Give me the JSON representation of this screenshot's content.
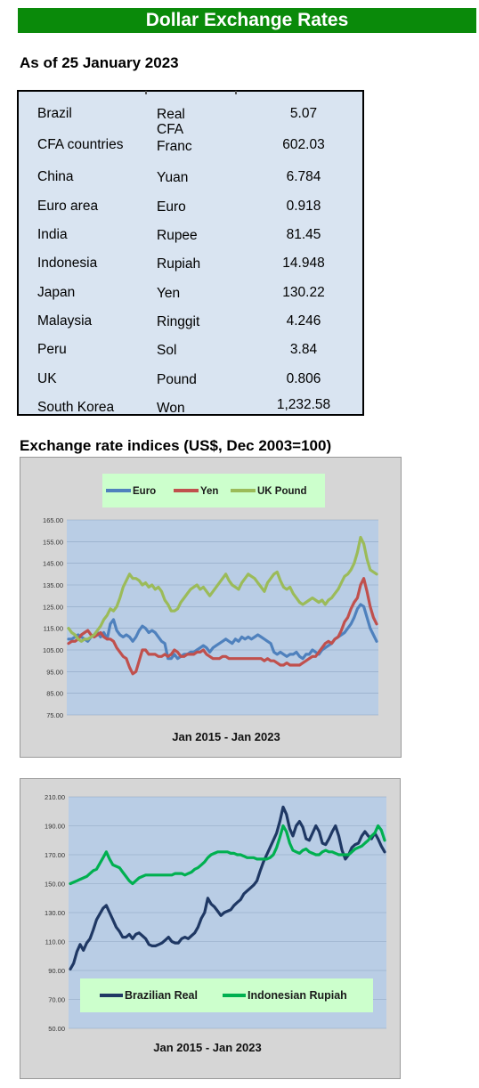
{
  "header": {
    "title": "Dollar Exchange Rates",
    "as_of": "As of 25 January 2023"
  },
  "rates": [
    {
      "country": "Brazil",
      "currency": "Real",
      "value": "5.07"
    },
    {
      "country": "CFA countries",
      "currency": "CFA Franc",
      "value": "602.03"
    },
    {
      "country": "China",
      "currency": "Yuan",
      "value": "6.784"
    },
    {
      "country": "Euro area",
      "currency": "Euro",
      "value": "0.918"
    },
    {
      "country": "India",
      "currency": "Rupee",
      "value": "81.45"
    },
    {
      "country": "Indonesia",
      "currency": "Rupiah",
      "value": "14.948"
    },
    {
      "country": "Japan",
      "currency": "Yen",
      "value": "130.22"
    },
    {
      "country": "Malaysia",
      "currency": "Ringgit",
      "value": "4.246"
    },
    {
      "country": "Peru",
      "currency": "Sol",
      "value": "3.84"
    },
    {
      "country": "UK",
      "currency": "Pound",
      "value": "0.806"
    },
    {
      "country": "South Korea",
      "currency": "Won",
      "value": "1,232.58"
    }
  ],
  "indices_title": "Exchange rate indices (US$, Dec 2003=100)",
  "colors": {
    "title_bar": "#0a8a0a",
    "table_bg": "#d9e4f1",
    "plot_bg": "#b9cde5",
    "frame_bg": "#d6d6d6",
    "legend_bg": "#ccffcc"
  },
  "chart_data": [
    {
      "type": "line",
      "xlabel": "Jan 2015 -  Jan 2023",
      "ylim": [
        75,
        165
      ],
      "yticks": [
        "75.00",
        "85.00",
        "95.00",
        "105.00",
        "115.00",
        "125.00",
        "135.00",
        "145.00",
        "155.00",
        "165.00"
      ],
      "x_count": 97,
      "legend_position": "top",
      "series": [
        {
          "name": "Euro",
          "color": "#4f81bd",
          "values": [
            110,
            110,
            111,
            112,
            111,
            110,
            109,
            111,
            112,
            113,
            111,
            113,
            110,
            117,
            119,
            114,
            112,
            111,
            112,
            111,
            109,
            111,
            114,
            116,
            115,
            113,
            114,
            113,
            111,
            109,
            108,
            101,
            101,
            103,
            101,
            102,
            103,
            103,
            104,
            104,
            105,
            106,
            107,
            106,
            104,
            106,
            107,
            108,
            109,
            110,
            109,
            108,
            110,
            109,
            111,
            110,
            111,
            110,
            111,
            112,
            111,
            110,
            109,
            108,
            104,
            103,
            104,
            103,
            102,
            103,
            103,
            104,
            102,
            101,
            103,
            103,
            105,
            104,
            103,
            105,
            106,
            107,
            108,
            110,
            111,
            112,
            113,
            115,
            117,
            120,
            124,
            126,
            125,
            120,
            115,
            112,
            109
          ]
        },
        {
          "name": "Yen",
          "color": "#c0504d",
          "values": [
            108,
            109,
            109,
            110,
            112,
            113,
            114,
            112,
            111,
            112,
            113,
            111,
            110,
            110,
            109,
            106,
            104,
            102,
            101,
            97,
            94,
            95,
            100,
            105,
            105,
            103,
            103,
            103,
            102,
            102,
            103,
            102,
            103,
            105,
            104,
            102,
            102,
            103,
            103,
            103,
            104,
            104,
            105,
            103,
            102,
            101,
            101,
            101,
            102,
            102,
            101,
            101,
            101,
            101,
            101,
            101,
            101,
            101,
            101,
            101,
            101,
            100,
            101,
            100,
            100,
            99,
            98,
            98,
            99,
            98,
            98,
            98,
            98,
            99,
            100,
            101,
            102,
            102,
            104,
            106,
            108,
            109,
            108,
            110,
            111,
            114,
            118,
            120,
            124,
            127,
            129,
            135,
            138,
            132,
            125,
            120,
            117
          ]
        },
        {
          "name": "UK Pound",
          "color": "#9bbb59",
          "values": [
            115,
            113,
            112,
            110,
            109,
            110,
            110,
            111,
            112,
            114,
            116,
            119,
            121,
            124,
            123,
            125,
            129,
            134,
            137,
            140,
            138,
            138,
            137,
            135,
            136,
            134,
            135,
            133,
            134,
            132,
            128,
            126,
            123,
            123,
            124,
            127,
            129,
            131,
            133,
            134,
            135,
            133,
            134,
            132,
            130,
            132,
            134,
            136,
            138,
            140,
            137,
            135,
            134,
            133,
            136,
            138,
            140,
            139,
            138,
            136,
            134,
            132,
            136,
            138,
            140,
            141,
            137,
            134,
            133,
            134,
            131,
            129,
            127,
            126,
            127,
            128,
            129,
            128,
            127,
            128,
            126,
            128,
            129,
            131,
            133,
            136,
            139,
            140,
            142,
            145,
            150,
            157,
            154,
            147,
            142,
            141,
            140
          ]
        }
      ]
    },
    {
      "type": "line",
      "xlabel": "Jan 2015 - Jan 2023",
      "ylim": [
        50,
        210
      ],
      "yticks": [
        "50.00",
        "70.00",
        "90.00",
        "110.00",
        "130.00",
        "150.00",
        "170.00",
        "190.00",
        "210.00"
      ],
      "x_count": 97,
      "legend_position": "bottom",
      "series": [
        {
          "name": "Brazilian Real",
          "color": "#1f3864",
          "values": [
            91,
            95,
            103,
            108,
            104,
            109,
            112,
            118,
            125,
            129,
            133,
            135,
            130,
            125,
            120,
            117,
            113,
            113,
            115,
            112,
            115,
            116,
            114,
            112,
            108,
            107,
            107,
            108,
            109,
            111,
            113,
            110,
            109,
            109,
            112,
            113,
            112,
            114,
            116,
            120,
            126,
            130,
            140,
            136,
            134,
            131,
            128,
            130,
            131,
            132,
            135,
            137,
            139,
            143,
            145,
            147,
            149,
            152,
            159,
            165,
            170,
            175,
            180,
            185,
            193,
            203,
            198,
            188,
            183,
            190,
            193,
            189,
            181,
            180,
            185,
            190,
            186,
            178,
            177,
            181,
            186,
            190,
            183,
            173,
            167,
            170,
            175,
            177,
            178,
            183,
            186,
            183,
            181,
            185,
            181,
            176,
            172
          ]
        },
        {
          "name": "Indonesian Rupiah",
          "color": "#00b050",
          "values": [
            150,
            151,
            152,
            153,
            154,
            155,
            157,
            159,
            160,
            164,
            168,
            172,
            167,
            163,
            162,
            161,
            158,
            155,
            152,
            150,
            152,
            154,
            155,
            156,
            156,
            156,
            156,
            156,
            156,
            156,
            156,
            156,
            157,
            157,
            157,
            156,
            157,
            158,
            160,
            161,
            163,
            165,
            168,
            170,
            171,
            172,
            172,
            172,
            172,
            171,
            171,
            170,
            170,
            169,
            168,
            168,
            168,
            167,
            167,
            167,
            167,
            168,
            170,
            175,
            182,
            190,
            186,
            178,
            173,
            172,
            171,
            173,
            174,
            172,
            171,
            170,
            170,
            172,
            173,
            172,
            172,
            171,
            170,
            170,
            170,
            170,
            172,
            174,
            175,
            176,
            178,
            180,
            183,
            185,
            190,
            187,
            180
          ]
        }
      ]
    }
  ]
}
